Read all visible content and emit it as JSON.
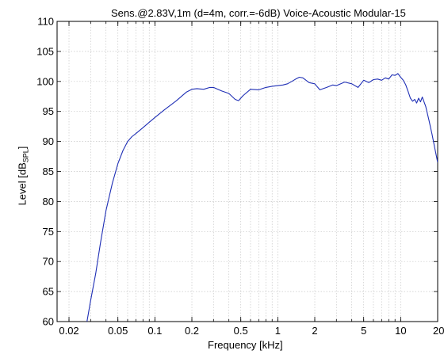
{
  "chart_data": {
    "type": "line",
    "title": "Sens.@2.83V,1m (d=4m, corr.=-6dB)   Voice-Acoustic Modular-15",
    "xlabel": "Frequency [kHz]",
    "ylabel": {
      "main": "Level [dB",
      "sub": "SPL",
      "close": "]"
    },
    "x_scale": "log",
    "xlim": [
      0.016,
      20
    ],
    "ylim": [
      60,
      110
    ],
    "x_ticks": [
      {
        "value": 0.02,
        "label": "0.02"
      },
      {
        "value": 0.05,
        "label": "0.05"
      },
      {
        "value": 0.1,
        "label": "0.1"
      },
      {
        "value": 0.2,
        "label": "0.2"
      },
      {
        "value": 0.5,
        "label": "0.5"
      },
      {
        "value": 1,
        "label": "1"
      },
      {
        "value": 2,
        "label": "2"
      },
      {
        "value": 5,
        "label": "5"
      },
      {
        "value": 10,
        "label": "10"
      },
      {
        "value": 20,
        "label": "20"
      }
    ],
    "y_ticks": [
      {
        "value": 60,
        "label": "60"
      },
      {
        "value": 65,
        "label": "65"
      },
      {
        "value": 70,
        "label": "70"
      },
      {
        "value": 75,
        "label": "75"
      },
      {
        "value": 80,
        "label": "80"
      },
      {
        "value": 85,
        "label": "85"
      },
      {
        "value": 90,
        "label": "90"
      },
      {
        "value": 95,
        "label": "95"
      },
      {
        "value": 100,
        "label": "100"
      },
      {
        "value": 105,
        "label": "105"
      },
      {
        "value": 110,
        "label": "110"
      }
    ],
    "grid": true,
    "series": [
      {
        "color": "#1f2fb5",
        "x": [
          0.028,
          0.03,
          0.033,
          0.036,
          0.04,
          0.045,
          0.05,
          0.055,
          0.06,
          0.065,
          0.07,
          0.08,
          0.09,
          0.1,
          0.12,
          0.15,
          0.18,
          0.2,
          0.22,
          0.25,
          0.28,
          0.3,
          0.35,
          0.4,
          0.45,
          0.48,
          0.52,
          0.6,
          0.7,
          0.8,
          0.9,
          1.0,
          1.1,
          1.2,
          1.3,
          1.4,
          1.5,
          1.6,
          1.8,
          2.0,
          2.2,
          2.5,
          2.8,
          3.0,
          3.5,
          4.0,
          4.5,
          5.0,
          5.5,
          6.0,
          6.5,
          7.0,
          7.5,
          8.0,
          8.5,
          9.0,
          9.5,
          10.0,
          10.5,
          11.0,
          11.5,
          12.0,
          12.5,
          13.0,
          13.5,
          14.0,
          14.5,
          15.0,
          16.0,
          17.0,
          18.0,
          19.0,
          20.0
        ],
        "y": [
          60.0,
          63.5,
          68.0,
          73.0,
          78.5,
          83.0,
          86.3,
          88.5,
          90.0,
          90.8,
          91.3,
          92.3,
          93.2,
          94.0,
          95.3,
          96.8,
          98.2,
          98.7,
          98.8,
          98.7,
          99.0,
          99.0,
          98.4,
          98.0,
          97.0,
          96.8,
          97.6,
          98.7,
          98.6,
          99.0,
          99.2,
          99.3,
          99.4,
          99.6,
          100.0,
          100.4,
          100.7,
          100.6,
          99.8,
          99.6,
          98.6,
          99.0,
          99.4,
          99.3,
          99.9,
          99.6,
          99.0,
          100.2,
          99.8,
          100.3,
          100.4,
          100.2,
          100.6,
          100.4,
          101.1,
          101.0,
          101.3,
          100.7,
          100.2,
          99.4,
          98.3,
          97.2,
          96.7,
          97.0,
          96.4,
          97.2,
          96.6,
          97.4,
          95.8,
          93.5,
          91.2,
          88.8,
          86.5
        ]
      }
    ]
  }
}
